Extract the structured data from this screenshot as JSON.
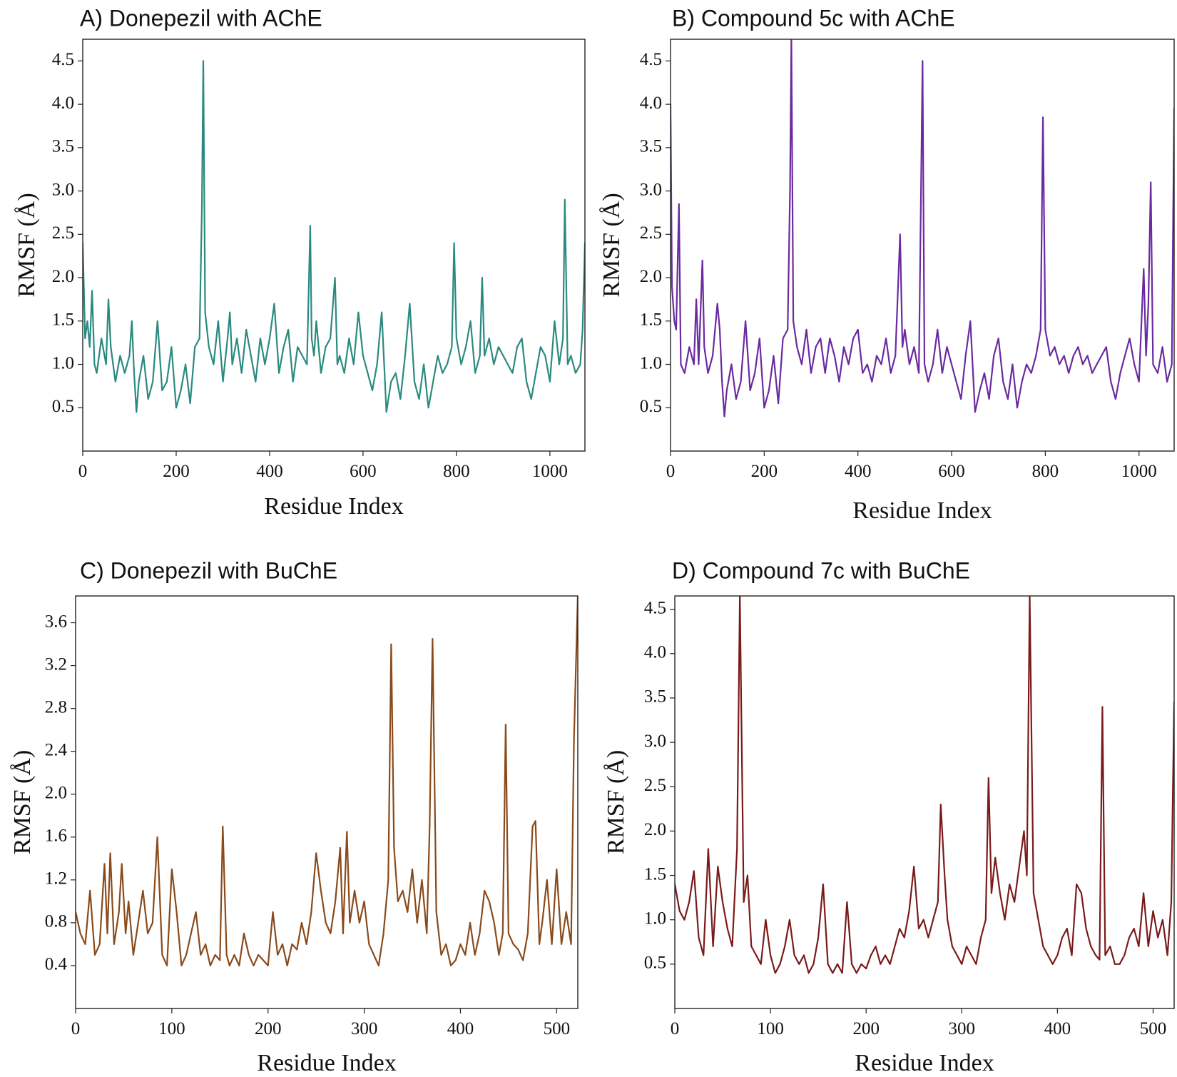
{
  "chart_data": [
    {
      "type": "line",
      "title": "A) Donepezil with AChE",
      "xlabel": "Residue Index",
      "ylabel": "RMSF (Å)",
      "xlim": [
        0,
        1075
      ],
      "ylim": [
        0.0,
        4.75
      ],
      "xticks": [
        0,
        200,
        400,
        600,
        800,
        1000
      ],
      "yticks": [
        0.5,
        1.0,
        1.5,
        2.0,
        2.5,
        3.0,
        3.5,
        4.0,
        4.5
      ],
      "ytick_labels": [
        "0.5",
        "1.0",
        "1.5",
        "2.0",
        "2.5",
        "3.0",
        "3.5",
        "4.0",
        "4.5"
      ],
      "color": "#2a8a80",
      "series": [
        {
          "x": [
            0,
            5,
            10,
            15,
            20,
            25,
            30,
            40,
            50,
            55,
            60,
            70,
            80,
            90,
            100,
            105,
            110,
            115,
            120,
            130,
            140,
            150,
            160,
            170,
            180,
            190,
            200,
            210,
            220,
            230,
            240,
            250,
            255,
            258,
            262,
            270,
            280,
            290,
            300,
            310,
            315,
            320,
            330,
            340,
            350,
            360,
            370,
            380,
            390,
            400,
            410,
            420,
            430,
            440,
            450,
            460,
            470,
            480,
            487,
            490,
            495,
            500,
            510,
            520,
            530,
            540,
            545,
            550,
            560,
            570,
            580,
            590,
            600,
            610,
            620,
            630,
            640,
            650,
            660,
            670,
            680,
            690,
            700,
            710,
            720,
            730,
            740,
            750,
            760,
            770,
            780,
            790,
            795,
            800,
            810,
            820,
            830,
            840,
            850,
            855,
            860,
            870,
            880,
            890,
            900,
            910,
            920,
            930,
            940,
            950,
            960,
            970,
            980,
            990,
            1000,
            1010,
            1020,
            1028,
            1032,
            1038,
            1045,
            1055,
            1065,
            1070,
            1075
          ],
          "y": [
            2.4,
            1.3,
            1.5,
            1.2,
            1.85,
            1.0,
            0.9,
            1.3,
            1.0,
            1.75,
            1.2,
            0.8,
            1.1,
            0.9,
            1.1,
            1.5,
            0.9,
            0.45,
            0.8,
            1.1,
            0.6,
            0.8,
            1.5,
            0.7,
            0.8,
            1.2,
            0.5,
            0.7,
            1.0,
            0.55,
            1.2,
            1.3,
            2.8,
            4.5,
            1.6,
            1.2,
            1.0,
            1.5,
            0.8,
            1.3,
            1.6,
            1.0,
            1.3,
            0.9,
            1.4,
            1.1,
            0.8,
            1.3,
            1.0,
            1.3,
            1.7,
            0.9,
            1.2,
            1.4,
            0.8,
            1.2,
            1.1,
            1.0,
            2.6,
            1.3,
            1.1,
            1.5,
            0.9,
            1.2,
            1.3,
            2.0,
            1.0,
            1.1,
            0.9,
            1.3,
            1.0,
            1.6,
            1.1,
            0.9,
            0.7,
            1.0,
            1.6,
            0.45,
            0.8,
            0.9,
            0.6,
            1.1,
            1.7,
            0.8,
            0.6,
            1.0,
            0.5,
            0.8,
            1.1,
            0.9,
            1.0,
            1.2,
            2.4,
            1.3,
            1.0,
            1.2,
            1.5,
            0.9,
            1.1,
            2.0,
            1.1,
            1.3,
            1.0,
            1.2,
            1.1,
            1.0,
            0.9,
            1.2,
            1.3,
            0.8,
            0.6,
            0.9,
            1.2,
            1.1,
            0.8,
            1.5,
            1.0,
            1.3,
            2.9,
            1.0,
            1.1,
            0.9,
            1.0,
            1.4,
            2.4
          ]
        }
      ]
    },
    {
      "type": "line",
      "title": "B) Compound 5c with AChE",
      "xlabel": "Residue Index",
      "ylabel": "RMSF (Å)",
      "xlim": [
        0,
        1075
      ],
      "ylim": [
        0.0,
        4.75
      ],
      "xticks": [
        0,
        200,
        400,
        600,
        800,
        1000
      ],
      "yticks": [
        0.5,
        1.0,
        1.5,
        2.0,
        2.5,
        3.0,
        3.5,
        4.0,
        4.5
      ],
      "ytick_labels": [
        "0.5",
        "1.0",
        "1.5",
        "2.0",
        "2.5",
        "3.0",
        "3.5",
        "4.0",
        "4.5"
      ],
      "color": "#6a2aa0",
      "series": [
        {
          "x": [
            0,
            3,
            8,
            12,
            18,
            22,
            30,
            40,
            50,
            55,
            60,
            68,
            72,
            80,
            90,
            100,
            105,
            110,
            115,
            120,
            130,
            140,
            150,
            160,
            170,
            180,
            190,
            200,
            210,
            220,
            230,
            240,
            250,
            255,
            258,
            262,
            270,
            280,
            290,
            300,
            310,
            320,
            330,
            340,
            350,
            360,
            370,
            380,
            390,
            400,
            410,
            420,
            430,
            440,
            450,
            460,
            470,
            480,
            490,
            495,
            500,
            510,
            520,
            530,
            538,
            542,
            550,
            560,
            570,
            580,
            590,
            600,
            610,
            620,
            630,
            640,
            650,
            660,
            670,
            680,
            690,
            700,
            710,
            720,
            730,
            740,
            750,
            760,
            770,
            780,
            790,
            795,
            800,
            810,
            820,
            830,
            840,
            850,
            860,
            870,
            880,
            890,
            900,
            910,
            920,
            930,
            940,
            950,
            960,
            970,
            980,
            990,
            1000,
            1010,
            1015,
            1020,
            1025,
            1030,
            1040,
            1050,
            1060,
            1070,
            1075
          ],
          "y": [
            4.0,
            1.9,
            1.5,
            1.4,
            2.85,
            1.0,
            0.9,
            1.2,
            1.0,
            1.75,
            1.0,
            2.2,
            1.2,
            0.9,
            1.1,
            1.7,
            1.4,
            0.8,
            0.4,
            0.7,
            1.0,
            0.6,
            0.8,
            1.5,
            0.7,
            0.9,
            1.3,
            0.5,
            0.7,
            1.1,
            0.55,
            1.3,
            1.4,
            3.0,
            4.75,
            1.5,
            1.2,
            1.0,
            1.4,
            0.9,
            1.2,
            1.3,
            0.9,
            1.3,
            1.1,
            0.8,
            1.2,
            1.0,
            1.3,
            1.4,
            0.9,
            1.0,
            0.8,
            1.1,
            1.0,
            1.3,
            0.9,
            1.1,
            2.5,
            1.2,
            1.4,
            1.0,
            1.2,
            0.9,
            4.5,
            1.0,
            0.8,
            1.0,
            1.4,
            0.9,
            1.2,
            1.0,
            0.8,
            0.6,
            1.1,
            1.5,
            0.45,
            0.7,
            0.9,
            0.6,
            1.1,
            1.3,
            0.8,
            0.6,
            1.0,
            0.5,
            0.8,
            1.0,
            0.9,
            1.1,
            1.4,
            3.85,
            1.4,
            1.1,
            1.2,
            1.0,
            1.1,
            0.9,
            1.1,
            1.2,
            1.0,
            1.1,
            0.9,
            1.0,
            1.1,
            1.2,
            0.8,
            0.6,
            0.9,
            1.1,
            1.3,
            1.0,
            0.8,
            2.1,
            1.1,
            1.7,
            3.1,
            1.0,
            0.9,
            1.2,
            0.8,
            1.0,
            3.95
          ]
        }
      ]
    },
    {
      "type": "line",
      "title": "C) Donepezil with BuChE",
      "xlabel": "Residue Index",
      "ylabel": "RMSF (Å)",
      "xlim": [
        0,
        522
      ],
      "ylim": [
        0.0,
        3.85
      ],
      "xticks": [
        0,
        100,
        200,
        300,
        400,
        500
      ],
      "yticks": [
        0.4,
        0.8,
        1.2,
        1.6,
        2.0,
        2.4,
        2.8,
        3.2,
        3.6
      ],
      "ytick_labels": [
        "0.4",
        "0.8",
        "1.2",
        "1.6",
        "2.0",
        "2.4",
        "2.8",
        "3.2",
        "3.6"
      ],
      "color": "#8a4a1a",
      "series": [
        {
          "x": [
            0,
            5,
            10,
            15,
            20,
            25,
            30,
            33,
            36,
            40,
            45,
            48,
            52,
            55,
            60,
            65,
            70,
            75,
            80,
            85,
            90,
            95,
            100,
            105,
            110,
            115,
            120,
            125,
            130,
            135,
            140,
            145,
            150,
            153,
            157,
            160,
            165,
            170,
            175,
            180,
            185,
            190,
            195,
            200,
            205,
            210,
            215,
            220,
            225,
            230,
            235,
            240,
            245,
            250,
            255,
            260,
            265,
            270,
            275,
            278,
            282,
            285,
            290,
            295,
            300,
            305,
            310,
            315,
            320,
            325,
            328,
            331,
            335,
            340,
            345,
            350,
            355,
            360,
            365,
            368,
            371,
            375,
            380,
            385,
            390,
            395,
            400,
            405,
            410,
            415,
            420,
            425,
            430,
            435,
            440,
            444,
            447,
            450,
            455,
            460,
            465,
            470,
            475,
            478,
            482,
            485,
            490,
            495,
            500,
            505,
            510,
            515,
            518,
            522
          ],
          "y": [
            0.9,
            0.7,
            0.6,
            1.1,
            0.5,
            0.6,
            1.35,
            0.7,
            1.45,
            0.6,
            0.9,
            1.35,
            0.7,
            1.0,
            0.5,
            0.8,
            1.1,
            0.7,
            0.8,
            1.6,
            0.5,
            0.4,
            1.3,
            0.9,
            0.4,
            0.5,
            0.7,
            0.9,
            0.5,
            0.6,
            0.4,
            0.5,
            0.45,
            1.7,
            0.5,
            0.4,
            0.5,
            0.4,
            0.7,
            0.5,
            0.4,
            0.5,
            0.45,
            0.4,
            0.9,
            0.5,
            0.6,
            0.4,
            0.6,
            0.55,
            0.8,
            0.6,
            0.9,
            1.45,
            1.1,
            0.8,
            0.7,
            1.0,
            1.5,
            0.7,
            1.65,
            0.8,
            1.1,
            0.8,
            1.0,
            0.6,
            0.5,
            0.4,
            0.7,
            1.2,
            3.4,
            1.5,
            1.0,
            1.1,
            0.9,
            1.3,
            0.8,
            1.2,
            0.7,
            1.7,
            3.45,
            0.9,
            0.5,
            0.6,
            0.4,
            0.45,
            0.6,
            0.5,
            0.8,
            0.5,
            0.7,
            1.1,
            1.0,
            0.8,
            0.5,
            0.7,
            2.65,
            0.7,
            0.6,
            0.55,
            0.45,
            0.7,
            1.7,
            1.75,
            0.6,
            0.8,
            1.2,
            0.6,
            1.3,
            0.6,
            0.9,
            0.6,
            2.5,
            3.85
          ]
        }
      ]
    },
    {
      "type": "line",
      "title": "D) Compound 7c with BuChE",
      "xlabel": "Residue Index",
      "ylabel": "RMSF (Å)",
      "xlim": [
        0,
        522
      ],
      "ylim": [
        0.0,
        4.65
      ],
      "xticks": [
        0,
        100,
        200,
        300,
        400,
        500
      ],
      "yticks": [
        0.5,
        1.0,
        1.5,
        2.0,
        2.5,
        3.0,
        3.5,
        4.0,
        4.5
      ],
      "ytick_labels": [
        "0.5",
        "1.0",
        "1.5",
        "2.0",
        "2.5",
        "3.0",
        "3.5",
        "4.0",
        "4.5"
      ],
      "color": "#7a1a1a",
      "series": [
        {
          "x": [
            0,
            5,
            10,
            15,
            20,
            25,
            30,
            35,
            40,
            45,
            50,
            55,
            60,
            65,
            68,
            72,
            76,
            80,
            85,
            90,
            95,
            100,
            105,
            110,
            115,
            120,
            125,
            130,
            135,
            140,
            145,
            150,
            155,
            160,
            165,
            170,
            175,
            180,
            185,
            190,
            195,
            200,
            205,
            210,
            215,
            220,
            225,
            230,
            235,
            240,
            245,
            250,
            255,
            260,
            265,
            270,
            275,
            278,
            282,
            285,
            290,
            295,
            300,
            305,
            310,
            315,
            320,
            325,
            328,
            331,
            335,
            340,
            345,
            350,
            355,
            360,
            365,
            368,
            371,
            375,
            380,
            385,
            390,
            395,
            400,
            405,
            410,
            415,
            420,
            425,
            430,
            435,
            440,
            444,
            447,
            450,
            455,
            460,
            465,
            470,
            475,
            480,
            485,
            490,
            495,
            500,
            505,
            510,
            515,
            519,
            522
          ],
          "y": [
            1.4,
            1.1,
            1.0,
            1.2,
            1.55,
            0.8,
            0.6,
            1.8,
            0.7,
            1.6,
            1.2,
            0.9,
            0.7,
            1.8,
            4.65,
            1.2,
            1.5,
            0.7,
            0.6,
            0.5,
            1.0,
            0.6,
            0.4,
            0.5,
            0.7,
            1.0,
            0.6,
            0.5,
            0.6,
            0.4,
            0.5,
            0.8,
            1.4,
            0.5,
            0.4,
            0.5,
            0.4,
            1.2,
            0.5,
            0.4,
            0.5,
            0.45,
            0.6,
            0.7,
            0.5,
            0.6,
            0.5,
            0.7,
            0.9,
            0.8,
            1.1,
            1.6,
            0.9,
            1.0,
            0.8,
            1.0,
            1.2,
            2.3,
            1.5,
            1.0,
            0.7,
            0.6,
            0.5,
            0.7,
            0.6,
            0.5,
            0.8,
            1.0,
            2.6,
            1.3,
            1.7,
            1.3,
            1.0,
            1.4,
            1.2,
            1.6,
            2.0,
            1.5,
            4.65,
            1.3,
            1.0,
            0.7,
            0.6,
            0.5,
            0.6,
            0.8,
            0.9,
            0.6,
            1.4,
            1.3,
            0.9,
            0.7,
            0.6,
            0.55,
            3.4,
            0.6,
            0.7,
            0.5,
            0.5,
            0.6,
            0.8,
            0.9,
            0.7,
            1.3,
            0.7,
            1.1,
            0.8,
            1.0,
            0.6,
            1.2,
            3.45
          ]
        }
      ]
    }
  ]
}
